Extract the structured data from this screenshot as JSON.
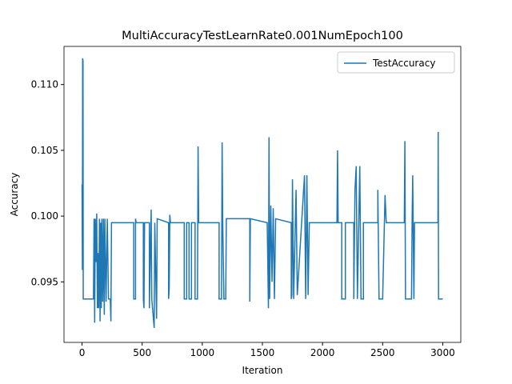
{
  "chart_data": {
    "type": "line",
    "title": "MultiAccuracyTestLearnRate0.001NumEpoch100",
    "xlabel": "Iteration",
    "ylabel": "Accuracy",
    "legend": "upper right",
    "grid": false,
    "xlim": [
      -150,
      3150
    ],
    "ylim": [
      0.0904,
      0.1129
    ],
    "xticks": [
      0,
      500,
      1000,
      1500,
      2000,
      2500,
      3000
    ],
    "yticks": [
      0.095,
      {
        "value": 0.1,
        "label": "0.100"
      },
      0.105,
      {
        "value": 0.11,
        "label": "0.110"
      }
    ],
    "x": [
      0,
      3,
      5,
      8,
      10,
      95,
      100,
      105,
      110,
      118,
      122,
      128,
      132,
      138,
      145,
      150,
      155,
      160,
      165,
      172,
      178,
      185,
      190,
      200,
      210,
      220,
      235,
      240,
      245,
      430,
      430,
      445,
      445,
      450,
      510,
      510,
      515,
      520,
      560,
      560,
      575,
      580,
      600,
      605,
      620,
      625,
      720,
      720,
      725,
      730,
      735,
      850,
      850,
      870,
      870,
      890,
      890,
      910,
      910,
      940,
      940,
      960,
      965,
      970,
      1140,
      1140,
      1160,
      1165,
      1170,
      1180,
      1195,
      1200,
      1395,
      1395,
      1400,
      1540,
      1550,
      1555,
      1560,
      1570,
      1580,
      1590,
      1600,
      1610,
      1740,
      1740,
      1745,
      1750,
      1760,
      1780,
      1790,
      1850,
      1860,
      1870,
      1880,
      1890,
      2120,
      2125,
      2130,
      2160,
      2160,
      2190,
      2190,
      2260,
      2260,
      2270,
      2280,
      2290,
      2310,
      2320,
      2340,
      2340,
      2460,
      2460,
      2470,
      2500,
      2520,
      2530,
      2680,
      2685,
      2690,
      2740,
      2745,
      2750,
      2760,
      2765,
      2960,
      2962,
      2965,
      3000
    ],
    "series": [
      {
        "name": "TestAccuracy",
        "color": "#1f77b4",
        "values": [
          0.1024,
          0.0959,
          0.112,
          0.1118,
          0.0937,
          0.0937,
          0.0998,
          0.0919,
          0.0998,
          0.0965,
          0.1002,
          0.093,
          0.0972,
          0.093,
          0.0998,
          0.092,
          0.0995,
          0.093,
          0.0998,
          0.0935,
          0.0998,
          0.0925,
          0.0998,
          0.0935,
          0.0998,
          0.0937,
          0.0937,
          0.092,
          0.0995,
          0.0995,
          0.0937,
          0.0937,
          0.0998,
          0.0995,
          0.0995,
          0.0937,
          0.093,
          0.0995,
          0.0995,
          0.093,
          0.1005,
          0.0937,
          0.0915,
          0.0995,
          0.0922,
          0.0998,
          0.0995,
          0.0937,
          0.0945,
          0.1001,
          0.0995,
          0.0995,
          0.0937,
          0.0937,
          0.0995,
          0.0995,
          0.0937,
          0.0937,
          0.0995,
          0.0995,
          0.0937,
          0.0937,
          0.1053,
          0.0995,
          0.0995,
          0.0937,
          0.0937,
          0.1056,
          0.0995,
          0.0937,
          0.0937,
          0.0998,
          0.0998,
          0.0935,
          0.0998,
          0.0995,
          0.093,
          0.106,
          0.0937,
          0.1008,
          0.095,
          0.1006,
          0.0937,
          0.0998,
          0.0995,
          0.0937,
          0.094,
          0.1028,
          0.0937,
          0.102,
          0.094,
          0.1031,
          0.0937,
          0.1031,
          0.094,
          0.0995,
          0.0995,
          0.105,
          0.0995,
          0.0995,
          0.0937,
          0.0937,
          0.0995,
          0.0995,
          0.0937,
          0.102,
          0.1038,
          0.0937,
          0.1038,
          0.0937,
          0.0937,
          0.0995,
          0.0995,
          0.102,
          0.0937,
          0.0937,
          0.1016,
          0.0995,
          0.0995,
          0.1057,
          0.0937,
          0.0937,
          0.0995,
          0.1031,
          0.0937,
          0.0995,
          0.0995,
          0.1064,
          0.0937,
          0.0937
        ]
      }
    ]
  }
}
